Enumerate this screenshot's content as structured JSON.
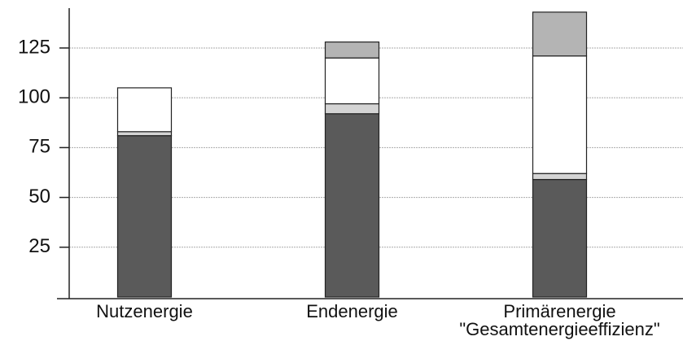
{
  "chart_data": {
    "type": "stacked_bar",
    "categories": [
      "Nutzenergie",
      "Endenergie",
      "Primärenergie\n\"Gesamtenergieeffizienz\""
    ],
    "series": [
      {
        "color": "#5a5a5a",
        "values": [
          81,
          92,
          59
        ]
      },
      {
        "color": "#d4d4d4",
        "values": [
          2,
          5,
          3
        ]
      },
      {
        "color": "#ffffff",
        "values": [
          22,
          23,
          59
        ]
      },
      {
        "color": "#b4b4b4",
        "values": [
          null,
          8,
          22
        ]
      }
    ],
    "ylim": [
      0,
      145
    ],
    "yticks": [
      25,
      50,
      75,
      100,
      125
    ],
    "grid": true
  }
}
